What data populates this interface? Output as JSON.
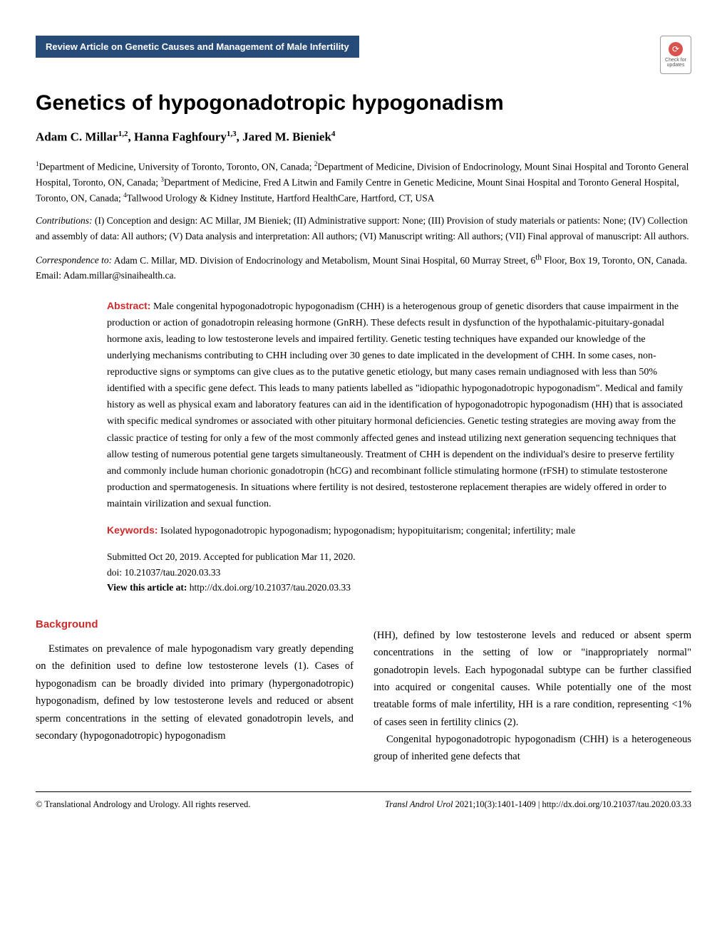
{
  "badge": {
    "text": "Review Article  on Genetic Causes and Management of Male Infertility",
    "bg_color": "#274b78",
    "text_color": "#ffffff"
  },
  "check_updates": {
    "label": "Check for updates",
    "icon_glyph": "⟳"
  },
  "title": "Genetics of hypogonadotropic hypogonadism",
  "authors_html": "Adam C. Millar<sup>1,2</sup>, Hanna Faghfoury<sup>1,3</sup>, Jared M. Bieniek<sup>4</sup>",
  "affiliations_html": "<sup>1</sup>Department of Medicine, University of Toronto, Toronto, ON, Canada; <sup>2</sup>Department of Medicine, Division of Endocrinology, Mount Sinai Hospital and Toronto General Hospital, Toronto, ON, Canada; <sup>3</sup>Department of Medicine, Fred A Litwin and Family Centre in Genetic Medicine, Mount Sinai Hospital and Toronto General Hospital, Toronto, ON, Canada; <sup>4</sup>Tallwood Urology & Kidney Institute, Hartford HealthCare, Hartford, CT, USA",
  "contributions_label": "Contributions:",
  "contributions": " (I) Conception and design: AC Millar, JM Bieniek; (II) Administrative support: None; (III) Provision of study materials or patients: None; (IV) Collection and assembly of data: All authors; (V) Data analysis and interpretation: All authors; (VI) Manuscript writing: All authors; (VII) Final approval of manuscript: All authors.",
  "correspondence_label": "Correspondence to:",
  "correspondence": " Adam C. Millar, MD. Division of Endocrinology and Metabolism, Mount Sinai Hospital, 60 Murray Street, 6<sup>th</sup> Floor, Box 19, Toronto, ON, Canada. Email: Adam.millar@sinaihealth.ca.",
  "abstract": {
    "label": "Abstract:",
    "text": " Male congenital hypogonadotropic hypogonadism (CHH) is a heterogenous group of genetic disorders that cause impairment in the production or action of gonadotropin releasing hormone (GnRH). These defects result in dysfunction of the hypothalamic-pituitary-gonadal hormone axis, leading to low testosterone levels and impaired fertility. Genetic testing techniques have expanded our knowledge of the underlying mechanisms contributing to CHH including over 30 genes to date implicated in the development of CHH. In some cases, non-reproductive signs or symptoms can give clues as to the putative genetic etiology, but many cases remain undiagnosed with less than 50% identified with a specific gene defect. This leads to many patients labelled as \"idiopathic hypogonadotropic hypogonadism\". Medical and family history as well as physical exam and laboratory features can aid in the identification of hypogonadotropic hypogonadism (HH) that is associated with specific medical syndromes or associated with other pituitary hormonal deficiencies. Genetic testing strategies are moving away from the classic practice of testing for only a few of the most commonly affected genes and instead utilizing next generation sequencing techniques that allow testing of numerous potential gene targets simultaneously. Treatment of CHH is dependent on the individual's desire to preserve fertility and commonly include human chorionic gonadotropin (hCG) and recombinant follicle stimulating hormone (rFSH) to stimulate testosterone production and spermatogenesis. In situations where fertility is not desired, testosterone replacement therapies are widely offered in order to maintain virilization and sexual function."
  },
  "keywords": {
    "label": "Keywords:",
    "text": " Isolated hypogonadotropic hypogonadism; hypogonadism; hypopituitarism; congenital; infertility; male"
  },
  "meta": {
    "dates": "Submitted Oct 20, 2019. Accepted for publication Mar 11, 2020.",
    "doi": "doi: 10.21037/tau.2020.03.33",
    "view_label": "View this article at:",
    "view_url": "http://dx.doi.org/10.21037/tau.2020.03.33"
  },
  "section": {
    "heading": "Background",
    "col1": "Estimates on prevalence of male hypogonadism vary greatly depending on the definition used to define low testosterone levels (1). Cases of hypogonadism can be broadly divided into primary (hypergonadotropic) hypogonadism, defined by low testosterone levels and reduced or absent sperm concentrations in the setting of elevated gonadotropin levels, and secondary (hypogonadotropic) hypogonadism",
    "col2_p1": "(HH), defined by low testosterone levels and reduced or absent sperm concentrations in the setting of low or \"inappropriately normal\" gonadotropin levels. Each hypogonadal subtype can be further classified into acquired or congenital causes. While potentially one of the most treatable forms of male infertility, HH is a rare condition, representing <1% of cases seen in fertility clinics (2).",
    "col2_p2": "Congenital hypogonadotropic hypogonadism (CHH) is a heterogeneous group of inherited gene defects that"
  },
  "footer": {
    "copyright": "© Translational Andrology and Urology. All rights reserved.",
    "journal": "Transl Androl Urol",
    "citation": " 2021;10(3):1401-1409 | http://dx.doi.org/10.21037/tau.2020.03.33"
  },
  "colors": {
    "accent_red": "#d12a2a",
    "accent_blue": "#274b78",
    "text": "#000000",
    "background": "#ffffff"
  },
  "typography": {
    "title_fontsize": 30,
    "body_fontsize": 14,
    "author_fontsize": 17,
    "footer_fontsize": 12.5
  }
}
